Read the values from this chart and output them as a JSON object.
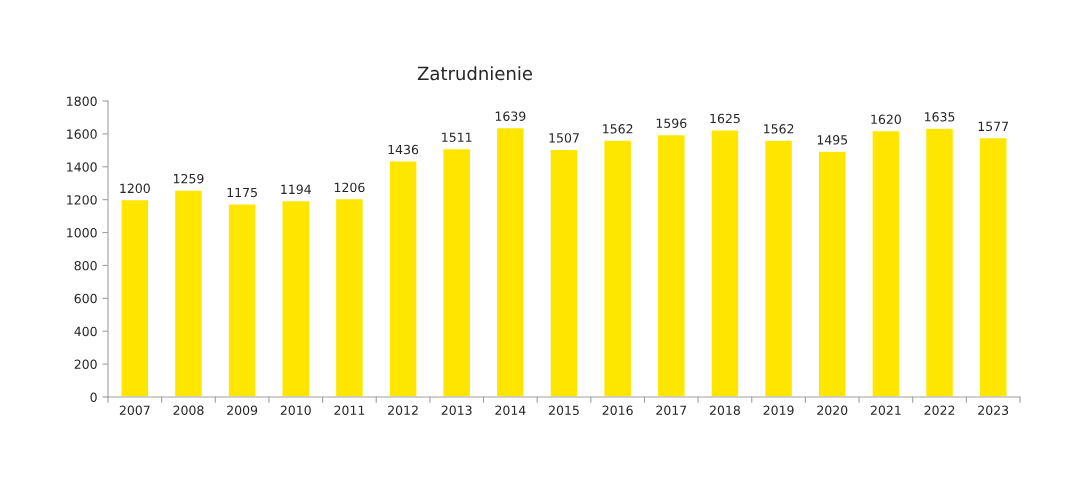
{
  "chart_data": {
    "type": "bar",
    "title": "Zatrudnienie",
    "categories": [
      "2007",
      "2008",
      "2009",
      "2010",
      "2011",
      "2012",
      "2013",
      "2014",
      "2015",
      "2016",
      "2017",
      "2018",
      "2019",
      "2020",
      "2021",
      "2022",
      "2023"
    ],
    "values": [
      1200,
      1259,
      1175,
      1194,
      1206,
      1436,
      1511,
      1639,
      1507,
      1562,
      1596,
      1625,
      1562,
      1495,
      1620,
      1635,
      1577
    ],
    "color": "#ffe600",
    "ylim": [
      0,
      1800
    ],
    "yticks": [
      0,
      200,
      400,
      600,
      800,
      1000,
      1200,
      1400,
      1600,
      1800
    ],
    "grid": false,
    "legend": false,
    "data_labels": true
  }
}
